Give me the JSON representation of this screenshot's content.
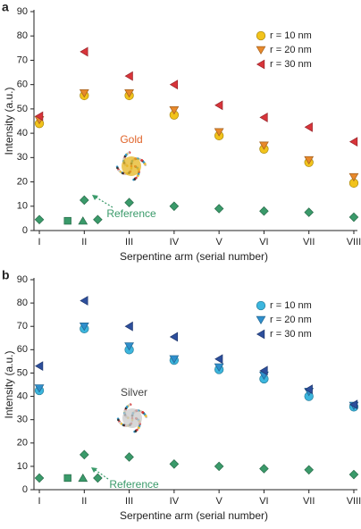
{
  "chart_data": [
    {
      "type": "scatter",
      "panel_label": "a",
      "x_label": "Serpentine arm (serial number)",
      "y_label": "Intensity (a.u.)",
      "xlim": [
        0.88,
        8.08
      ],
      "xticks": [
        {
          "value": 1,
          "label": "I"
        },
        {
          "value": 2,
          "label": "II"
        },
        {
          "value": 3,
          "label": "III"
        },
        {
          "value": 4,
          "label": "IV"
        },
        {
          "value": 5,
          "label": "V"
        },
        {
          "value": 6,
          "label": "VI"
        },
        {
          "value": 7,
          "label": "VII"
        },
        {
          "value": 8,
          "label": "VIII"
        }
      ],
      "ylim": [
        0,
        90
      ],
      "yticks": [
        0,
        10,
        20,
        30,
        40,
        50,
        60,
        70,
        80,
        90
      ],
      "series": [
        {
          "name": "r = 10 nm",
          "marker": "circle",
          "color": "#f2c31b",
          "x": [
            1,
            2,
            3,
            4,
            5,
            6,
            7,
            8
          ],
          "values": [
            44,
            55.5,
            55.5,
            47.5,
            39,
            33.5,
            28,
            19.5
          ]
        },
        {
          "name": "r = 20 nm",
          "marker": "triangle-down",
          "color": "#e8892b",
          "x": [
            1,
            2,
            3,
            4,
            5,
            6,
            7,
            8
          ],
          "values": [
            45.5,
            56.5,
            56.5,
            49.5,
            40.5,
            35,
            29,
            22
          ]
        },
        {
          "name": "r = 30 nm",
          "marker": "triangle-left",
          "color": "#d8343a",
          "x": [
            1,
            2,
            3,
            4,
            5,
            6,
            7,
            8
          ],
          "values": [
            47,
            73.5,
            63.5,
            60,
            51.5,
            46.5,
            42.5,
            36.5
          ]
        },
        {
          "marker": "diamond",
          "color": "#3a9a6a",
          "x": [
            1,
            2,
            3,
            4,
            5,
            6,
            7,
            8
          ],
          "values": [
            4.5,
            12.5,
            11.5,
            10,
            9,
            8,
            7.5,
            5.5
          ]
        },
        {
          "marker": "square",
          "color": "#3a9a6a",
          "x": [
            1.63
          ],
          "values": [
            4
          ]
        },
        {
          "marker": "triangle-up",
          "color": "#3a9a6a",
          "x": [
            1.97
          ],
          "values": [
            4
          ]
        },
        {
          "marker": "diamond",
          "color": "#3a9a6a",
          "x": [
            2.3
          ],
          "values": [
            4.5
          ]
        }
      ],
      "annotations": [
        {
          "text": "Gold",
          "color": "#e0642a"
        },
        {
          "text": "Reference",
          "color": "#3a9a6a"
        }
      ]
    },
    {
      "type": "scatter",
      "panel_label": "b",
      "x_label": "Serpentine arm (serial number)",
      "y_label": "Intensity (a.u.)",
      "xlim": [
        0.88,
        8.08
      ],
      "xticks": [
        {
          "value": 1,
          "label": "I"
        },
        {
          "value": 2,
          "label": "II"
        },
        {
          "value": 3,
          "label": "III"
        },
        {
          "value": 4,
          "label": "IV"
        },
        {
          "value": 5,
          "label": "V"
        },
        {
          "value": 6,
          "label": "VI"
        },
        {
          "value": 7,
          "label": "VII"
        },
        {
          "value": 8,
          "label": "VIII"
        }
      ],
      "ylim": [
        0,
        90
      ],
      "yticks": [
        0,
        10,
        20,
        30,
        40,
        50,
        60,
        70,
        80,
        90
      ],
      "series": [
        {
          "name": "r = 10 nm",
          "marker": "circle",
          "color": "#3cb6de",
          "x": [
            1,
            2,
            3,
            4,
            5,
            6,
            7,
            8
          ],
          "values": [
            42.5,
            69,
            60,
            55.5,
            51.5,
            47.5,
            40,
            35.5
          ]
        },
        {
          "name": "r = 20 nm",
          "marker": "triangle-down",
          "color": "#2f8fcc",
          "x": [
            1,
            2,
            3,
            4,
            5,
            6,
            7,
            8
          ],
          "values": [
            43.5,
            70,
            61.5,
            56,
            52.5,
            49,
            42,
            36
          ]
        },
        {
          "name": "r = 30 nm",
          "marker": "triangle-left",
          "color": "#2d4f9c",
          "x": [
            1,
            2,
            3,
            4,
            5,
            6,
            7,
            8
          ],
          "values": [
            53,
            81,
            70,
            65.5,
            56,
            51,
            43,
            36.5
          ]
        },
        {
          "marker": "diamond",
          "color": "#3a9a6a",
          "x": [
            1,
            2,
            3,
            4,
            5,
            6,
            7,
            8
          ],
          "values": [
            5,
            15,
            14,
            11,
            10,
            9,
            8.5,
            6.5
          ]
        },
        {
          "marker": "square",
          "color": "#3a9a6a",
          "x": [
            1.63
          ],
          "values": [
            5
          ]
        },
        {
          "marker": "triangle-up",
          "color": "#3a9a6a",
          "x": [
            1.97
          ],
          "values": [
            5
          ]
        },
        {
          "marker": "diamond",
          "color": "#3a9a6a",
          "x": [
            2.3
          ],
          "values": [
            5
          ]
        }
      ],
      "annotations": [
        {
          "text": "Silver",
          "color": "#444444"
        },
        {
          "text": "Reference",
          "color": "#3a9a6a"
        }
      ]
    }
  ]
}
